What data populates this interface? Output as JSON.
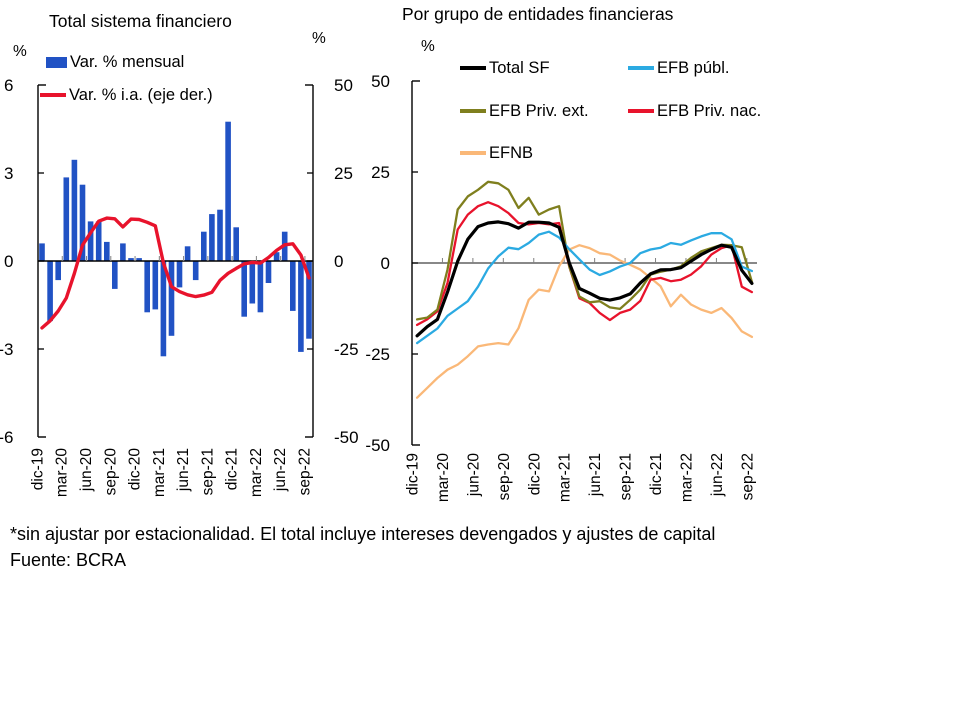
{
  "header": {
    "left_title": "Total sistema financiero",
    "right_title": "Por grupo de entidades financieras"
  },
  "footer": {
    "note": "*sin ajustar por estacionalidad. El total incluye intereses devengados y ajustes de capital",
    "source": "Fuente: BCRA"
  },
  "left_chart": {
    "percent_left": "%",
    "percent_right": "%",
    "legend": [
      {
        "label": "Var. % mensual",
        "marker": "bar",
        "color": "#2152C4"
      },
      {
        "label": "Var. % i.a. (eje der.)",
        "marker": "line",
        "color": "#E8132C"
      }
    ]
  },
  "right_chart": {
    "percent": "%",
    "legend": [
      {
        "label": "Total SF",
        "marker": "line",
        "color": "#000000"
      },
      {
        "label": "EFB públ.",
        "marker": "line",
        "color": "#2BAAE2"
      },
      {
        "label": "EFB Priv. ext.",
        "marker": "line",
        "color": "#7F7F1E"
      },
      {
        "label": "EFB Priv. nac.",
        "marker": "line",
        "color": "#E8132C"
      },
      {
        "label": "EFNB",
        "marker": "line",
        "color": "#FAB878"
      }
    ]
  },
  "chart_data": [
    {
      "type": "bar",
      "title": "Total sistema financiero",
      "categories": [
        "dic-19",
        "ene-20",
        "feb-20",
        "mar-20",
        "abr-20",
        "may-20",
        "jun-20",
        "jul-20",
        "ago-20",
        "sep-20",
        "oct-20",
        "nov-20",
        "dic-20",
        "ene-21",
        "feb-21",
        "mar-21",
        "abr-21",
        "may-21",
        "jun-21",
        "jul-21",
        "ago-21",
        "sep-21",
        "oct-21",
        "nov-21",
        "dic-21",
        "ene-22",
        "feb-22",
        "mar-22",
        "abr-22",
        "may-22",
        "jun-22",
        "jul-22",
        "ago-22",
        "sep-22"
      ],
      "x_axis_tick_labels": [
        "dic-19",
        "mar-20",
        "jun-20",
        "sep-20",
        "dic-20",
        "mar-21",
        "jun-21",
        "sep-21",
        "dic-21",
        "mar-22",
        "jun-22",
        "sep-22"
      ],
      "left_axis": {
        "title": "%",
        "ticks": [
          6,
          3,
          0,
          -3,
          -6
        ],
        "range": [
          -6,
          6
        ]
      },
      "right_axis": {
        "title": "%",
        "ticks": [
          50,
          25,
          0,
          -25,
          -50
        ],
        "range": [
          -50,
          50
        ]
      },
      "series": [
        {
          "name": "Var. % mensual",
          "type": "bar",
          "axis": "left",
          "color": "#2152C4",
          "values": [
            0.6,
            -2.05,
            -0.65,
            2.85,
            3.45,
            2.6,
            1.35,
            1.35,
            0.65,
            -0.95,
            0.6,
            0.1,
            0.1,
            -1.75,
            -1.65,
            -3.25,
            -2.55,
            -0.9,
            0.5,
            -0.65,
            1.0,
            1.6,
            1.75,
            4.75,
            1.15,
            -1.9,
            -1.45,
            -1.75,
            -0.75,
            0.3,
            1.0,
            -1.7,
            -3.1,
            -2.65
          ]
        },
        {
          "name": "Var. % i.a. (eje der.)",
          "type": "line",
          "axis": "right",
          "color": "#E8132C",
          "values": [
            -19,
            -17,
            -14.2,
            -10.5,
            -3.5,
            4.5,
            8,
            11.3,
            12.2,
            12.0,
            9.7,
            11.9,
            11.8,
            11.0,
            10.0,
            -0.5,
            -7.3,
            -8.7,
            -9.6,
            -10.1,
            -9.7,
            -8.9,
            -5.5,
            -3.5,
            -2.1,
            -0.8,
            -0.4,
            -0.6,
            1.0,
            3.0,
            4.6,
            4.9,
            1.7,
            -4.8
          ]
        }
      ]
    },
    {
      "type": "line",
      "title": "Por grupo de entidades financieras",
      "categories": [
        "dic-19",
        "ene-20",
        "feb-20",
        "mar-20",
        "abr-20",
        "may-20",
        "jun-20",
        "jul-20",
        "ago-20",
        "sep-20",
        "oct-20",
        "nov-20",
        "dic-20",
        "ene-21",
        "feb-21",
        "mar-21",
        "abr-21",
        "may-21",
        "jun-21",
        "jul-21",
        "ago-21",
        "sep-21",
        "oct-21",
        "nov-21",
        "dic-21",
        "ene-22",
        "feb-22",
        "mar-22",
        "abr-22",
        "may-22",
        "jun-22",
        "jul-22",
        "ago-22",
        "sep-22"
      ],
      "x_axis_tick_labels": [
        "dic-19",
        "mar-20",
        "jun-20",
        "sep-20",
        "dic-20",
        "mar-21",
        "jun-21",
        "sep-21",
        "dic-21",
        "mar-22",
        "jun-22",
        "sep-22"
      ],
      "left_axis": {
        "title": "%",
        "ticks": [
          50,
          25,
          0,
          -25,
          -50
        ],
        "range": [
          -50,
          50
        ]
      },
      "series": [
        {
          "name": "Total SF",
          "color": "#000000",
          "width": 3.2,
          "values": [
            -20,
            -17.5,
            -15.5,
            -8,
            0.5,
            6.5,
            10,
            11,
            11.3,
            10.8,
            9.6,
            11.2,
            11.2,
            11,
            9.8,
            0,
            -7,
            -8.3,
            -9.7,
            -10.2,
            -9.6,
            -8.5,
            -5.5,
            -3,
            -1.9,
            -1.8,
            -1.3,
            0.5,
            2.3,
            3.7,
            4.9,
            4.3,
            -2,
            -5.6
          ]
        },
        {
          "name": "EFB públ.",
          "color": "#2BAAE2",
          "width": 2.3,
          "values": [
            -22,
            -20,
            -18,
            -14.5,
            -12.5,
            -10.5,
            -6.5,
            -1.5,
            1.8,
            4.2,
            3.8,
            5.5,
            7.8,
            8.6,
            7,
            3.8,
            1,
            -1.8,
            -3.3,
            -2.3,
            -1,
            0,
            2.7,
            3.7,
            4.2,
            5.5,
            5,
            6.2,
            7.3,
            8.2,
            8.2,
            6.5,
            -1,
            -2.2
          ]
        },
        {
          "name": "EFB Priv. ext.",
          "color": "#7F7F1E",
          "width": 2.3,
          "values": [
            -15.5,
            -15,
            -12.8,
            -1.8,
            14.7,
            18.3,
            20.1,
            22.3,
            21.9,
            20.1,
            15.1,
            17.9,
            13.3,
            14.7,
            15.6,
            -1,
            -9.2,
            -10.8,
            -10.5,
            -12.2,
            -12.6,
            -10.1,
            -7.3,
            -3.2,
            -2.4,
            -1.8,
            -0.9,
            1.4,
            3.2,
            4.1,
            5,
            4.9,
            4.3,
            -5.2
          ]
        },
        {
          "name": "EFB Priv. nac.",
          "color": "#E8132C",
          "width": 2.3,
          "values": [
            -17,
            -15.5,
            -13.3,
            -5.5,
            9.2,
            13.3,
            15.6,
            16.7,
            15.6,
            13.7,
            11,
            10.6,
            11,
            10.6,
            11,
            -1,
            -9.7,
            -11,
            -13.7,
            -15.7,
            -13.7,
            -12.8,
            -10.4,
            -4.6,
            -4.1,
            -5,
            -4.6,
            -3.2,
            -0.9,
            2.3,
            4.1,
            4.9,
            -6.5,
            -8
          ]
        },
        {
          "name": "EFNB",
          "color": "#FAB878",
          "width": 2.3,
          "values": [
            -37,
            -34.3,
            -31.6,
            -29.3,
            -27.9,
            -25.6,
            -22.9,
            -22.4,
            -22,
            -22.4,
            -17.9,
            -10.1,
            -7.3,
            -7.8,
            -0.9,
            3.7,
            4.9,
            4.1,
            2.7,
            2.3,
            0.7,
            -0.5,
            -1.8,
            -4.1,
            -6.4,
            -11.9,
            -8.7,
            -11.4,
            -12.8,
            -13.7,
            -12.4,
            -15.1,
            -18.8,
            -20.3
          ]
        }
      ]
    }
  ]
}
